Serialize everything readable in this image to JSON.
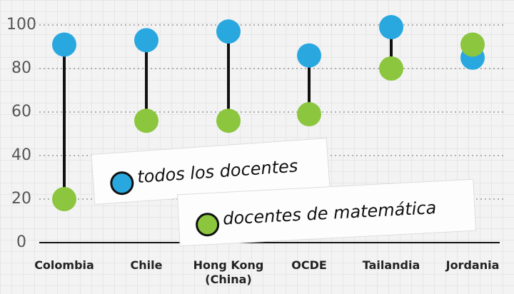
{
  "chart_data": {
    "type": "dumbbell",
    "categories": [
      "Colombia",
      "Chile",
      "Hong Kong\n(China)",
      "OCDE",
      "Tailandia",
      "Jordania"
    ],
    "series": [
      {
        "name": "todos los docentes",
        "color": "#29a8e0",
        "values": [
          91,
          93,
          97,
          86,
          99,
          85
        ]
      },
      {
        "name": "docentes de matemática",
        "color": "#8cc63f",
        "values": [
          20,
          56,
          56,
          59,
          80,
          91
        ]
      }
    ],
    "ylim": [
      0,
      100
    ],
    "yticks": [
      0,
      20,
      40,
      60,
      80,
      100
    ],
    "grid": true
  }
}
